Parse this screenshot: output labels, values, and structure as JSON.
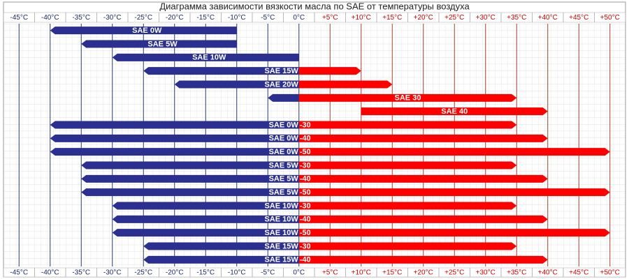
{
  "chart_data": {
    "type": "range-bar",
    "title": "Диаграмма зависимости вязкости масла по SAE от температуры воздуха",
    "xlim": [
      -47.5,
      52.5
    ],
    "xticks": [
      {
        "value": -45,
        "label": "-45°C"
      },
      {
        "value": -40,
        "label": "-40°C"
      },
      {
        "value": -35,
        "label": "-35°C"
      },
      {
        "value": -30,
        "label": "-30°C"
      },
      {
        "value": -25,
        "label": "-25°C"
      },
      {
        "value": -20,
        "label": "-20°C"
      },
      {
        "value": -15,
        "label": "-15°C"
      },
      {
        "value": -10,
        "label": "-10°C"
      },
      {
        "value": -5,
        "label": "-5°C"
      },
      {
        "value": 0,
        "label": "0°C"
      },
      {
        "value": 5,
        "label": "+5°C"
      },
      {
        "value": 10,
        "label": "+10°C"
      },
      {
        "value": 15,
        "label": "+15°C"
      },
      {
        "value": 20,
        "label": "+20°C"
      },
      {
        "value": 25,
        "label": "+25°C"
      },
      {
        "value": 30,
        "label": "+30°C"
      },
      {
        "value": 35,
        "label": "+35°C"
      },
      {
        "value": 40,
        "label": "+40°C"
      },
      {
        "value": 45,
        "label": "+45°C"
      },
      {
        "value": 50,
        "label": "+50°C"
      }
    ],
    "grid": true,
    "cold_color": "#2b2f8f",
    "warm_color": "#ff0000",
    "cold_grid_color": "#243a74",
    "warm_grid_color": "#a8402a",
    "bars": [
      {
        "name": "SAE 0W",
        "low": -40,
        "high": -10
      },
      {
        "name": "SAE 5W",
        "low": -35,
        "high": -10
      },
      {
        "name": "SAE 10W",
        "low": -30,
        "high": 0
      },
      {
        "name": "SAE 15W",
        "low": -25,
        "high": 10
      },
      {
        "name": "SAE 20W",
        "low": -20,
        "high": 15
      },
      {
        "name": "SAE 30",
        "low": -5,
        "high": 35
      },
      {
        "name": "SAE 40",
        "low": 10,
        "high": 40
      },
      {
        "name": "SAE 0W",
        "suffix": "-30",
        "low": -40,
        "high": 35
      },
      {
        "name": "SAE 0W",
        "suffix": "-40",
        "low": -40,
        "high": 40
      },
      {
        "name": "SAE 0W",
        "suffix": "-50",
        "low": -40,
        "high": 50
      },
      {
        "name": "SAE 5W",
        "suffix": "-30",
        "low": -35,
        "high": 35
      },
      {
        "name": "SAE 5W",
        "suffix": "-40",
        "low": -35,
        "high": 40
      },
      {
        "name": "SAE 5W",
        "suffix": "-50",
        "low": -35,
        "high": 50
      },
      {
        "name": "SAE 10W",
        "suffix": "-30",
        "low": -30,
        "high": 35
      },
      {
        "name": "SAE 10W",
        "suffix": "-40",
        "low": -30,
        "high": 40
      },
      {
        "name": "SAE 10W",
        "suffix": "-50",
        "low": -30,
        "high": 50
      },
      {
        "name": "SAE 15W",
        "suffix": "-30",
        "low": -25,
        "high": 35
      },
      {
        "name": "SAE 15W",
        "suffix": "-40",
        "low": -25,
        "high": 40
      }
    ]
  }
}
